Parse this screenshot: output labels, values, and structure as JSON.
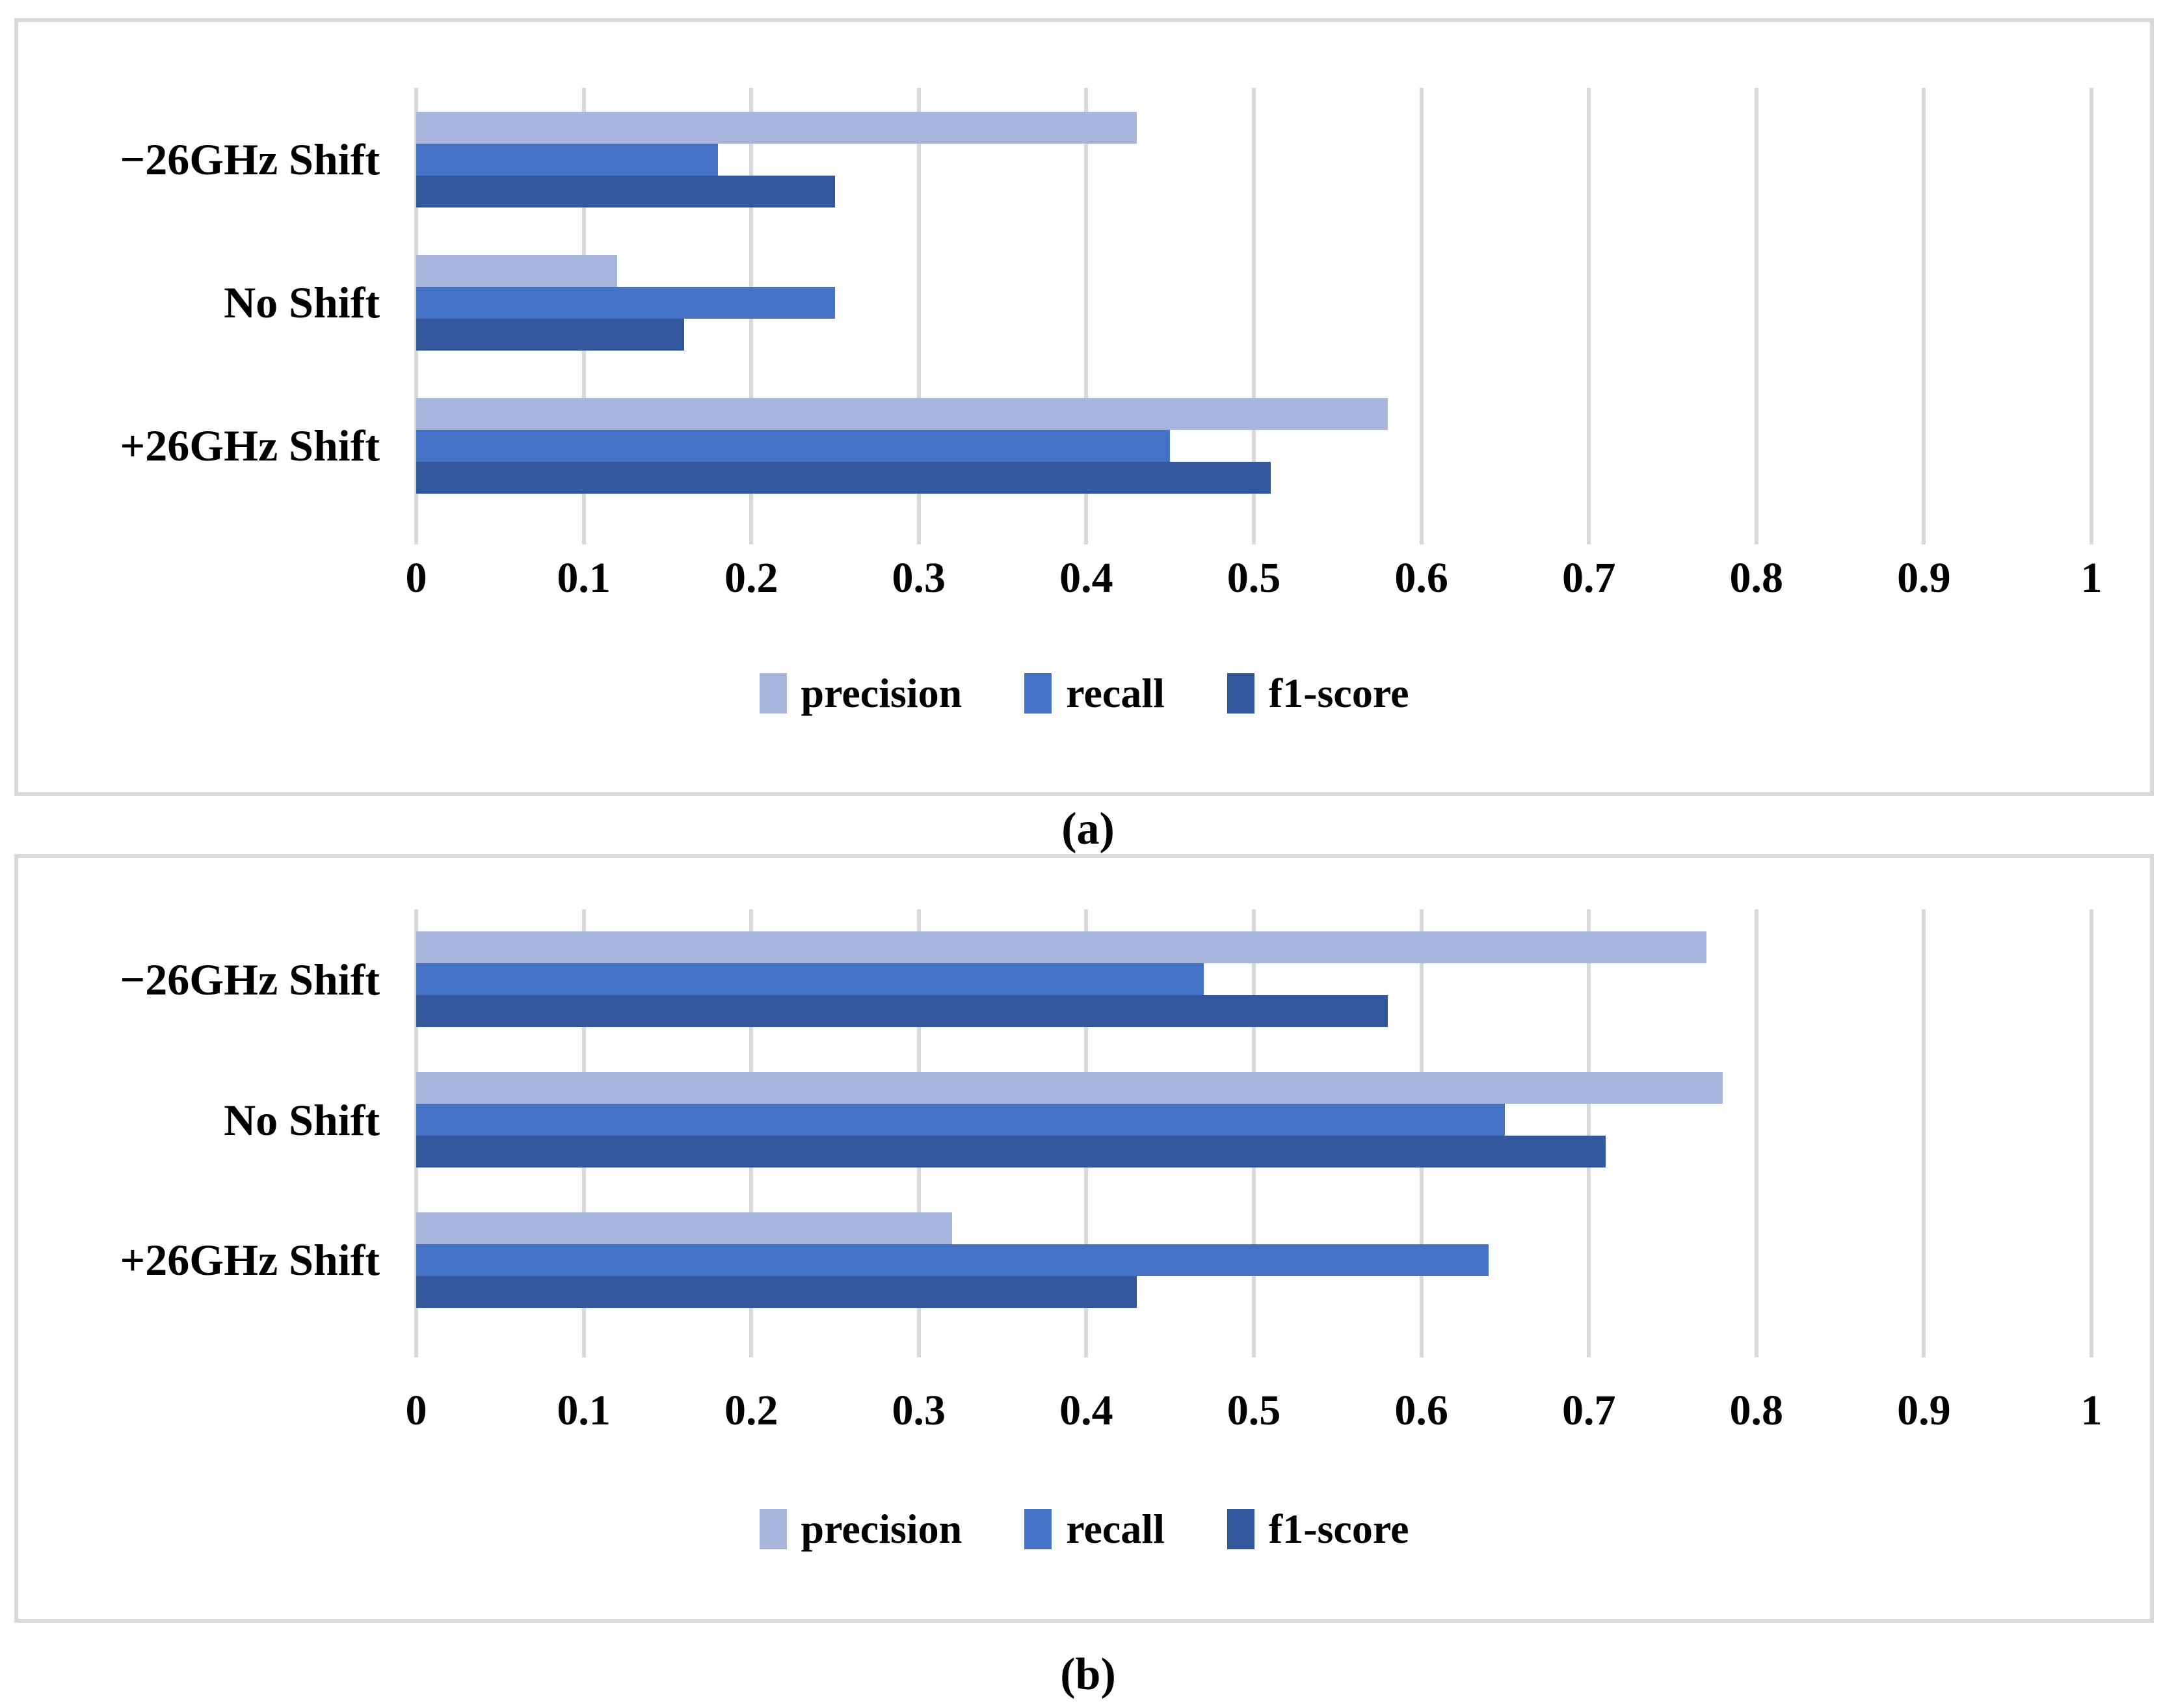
{
  "figure": {
    "caption_a": "(a)",
    "caption_b": "(b)"
  },
  "colors": {
    "precision": "#A7B4DC",
    "recall": "#4472C4",
    "f1_score": "#33589D",
    "gridline": "#D9D9D9",
    "border": "#D9D9D9",
    "text": "#000000"
  },
  "chart_data": [
    {
      "type": "bar",
      "orientation": "horizontal",
      "id": "a",
      "title": "(a)",
      "categories": [
        "−26GHz Shift",
        "No Shift",
        "+26GHz Shift"
      ],
      "series": [
        {
          "name": "precision",
          "color": "#A7B4DC",
          "values": [
            0.43,
            0.12,
            0.58
          ]
        },
        {
          "name": "recall",
          "color": "#4472C4",
          "values": [
            0.18,
            0.25,
            0.45
          ]
        },
        {
          "name": "f1-score",
          "color": "#33589D",
          "values": [
            0.25,
            0.16,
            0.51
          ]
        }
      ],
      "xlim": [
        0,
        1
      ],
      "x_ticks": [
        "0",
        "0.1",
        "0.2",
        "0.3",
        "0.4",
        "0.5",
        "0.6",
        "0.7",
        "0.8",
        "0.9",
        "1"
      ],
      "grid": true,
      "legend_position": "bottom"
    },
    {
      "type": "bar",
      "orientation": "horizontal",
      "id": "b",
      "title": "(b)",
      "categories": [
        "−26GHz Shift",
        "No Shift",
        "+26GHz Shift"
      ],
      "series": [
        {
          "name": "precision",
          "color": "#A7B4DC",
          "values": [
            0.77,
            0.78,
            0.32
          ]
        },
        {
          "name": "recall",
          "color": "#4472C4",
          "values": [
            0.47,
            0.65,
            0.64
          ]
        },
        {
          "name": "f1-score",
          "color": "#33589D",
          "values": [
            0.58,
            0.71,
            0.43
          ]
        }
      ],
      "xlim": [
        0,
        1
      ],
      "x_ticks": [
        "0",
        "0.1",
        "0.2",
        "0.3",
        "0.4",
        "0.5",
        "0.6",
        "0.7",
        "0.8",
        "0.9",
        "1"
      ],
      "grid": true,
      "legend_position": "bottom"
    }
  ]
}
